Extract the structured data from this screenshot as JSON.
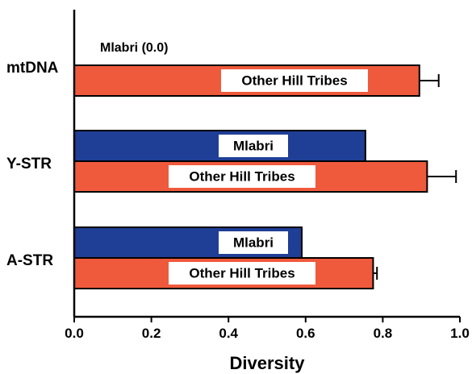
{
  "chart_data": {
    "type": "bar",
    "orientation": "horizontal",
    "categories": [
      "mtDNA",
      "Y-STR",
      "A-STR"
    ],
    "series": [
      {
        "name": "Mlabri",
        "values": [
          0.0,
          0.755,
          0.59
        ],
        "color": "#1f3e96"
      },
      {
        "name": "Other Hill Tribes",
        "values": [
          0.895,
          0.915,
          0.775
        ],
        "errors": [
          0.05,
          0.075,
          0.01
        ],
        "color": "#f05a3c"
      }
    ],
    "bar_labels": [
      "Mlabri",
      "Other Hill Tribes"
    ],
    "annotations": [
      "Mlabri (0.0)"
    ],
    "xlabel": "Diversity",
    "xlim": [
      0,
      1
    ],
    "xticks": [
      "0.0",
      "0.2",
      "0.4",
      "0.6",
      "0.8",
      "1.0"
    ],
    "grid": false
  }
}
